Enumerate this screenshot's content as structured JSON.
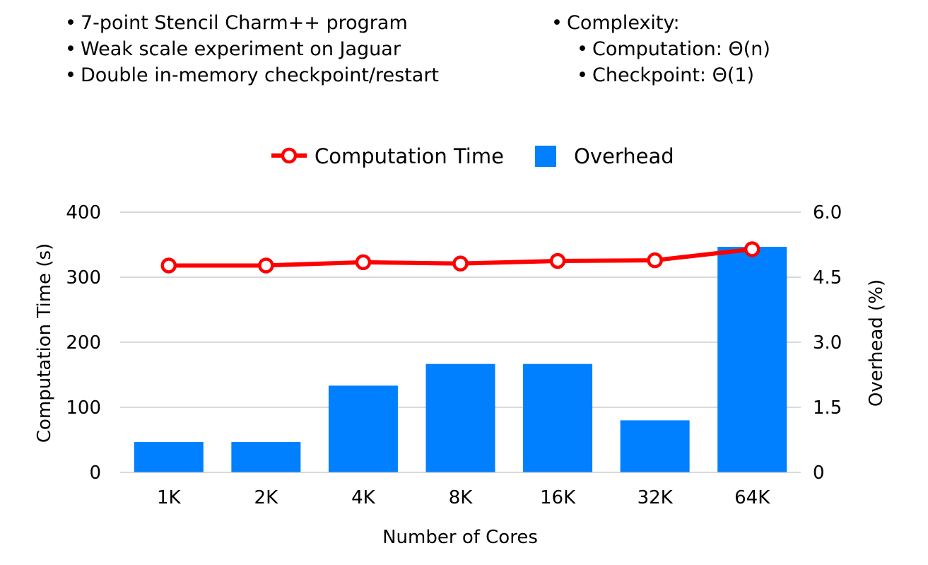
{
  "notes_left": [
    "7-point Stencil Charm++ program",
    "Weak scale experiment on Jaguar",
    "Double in-memory checkpoint/restart"
  ],
  "notes_right": {
    "heading": "Complexity:",
    "items": [
      "Computation: Θ(n)",
      "Checkpoint: Θ(1)"
    ]
  },
  "chart_data": {
    "type": "bar",
    "categories": [
      "1K",
      "2K",
      "4K",
      "8K",
      "16K",
      "32K",
      "64K"
    ],
    "series": [
      {
        "name": "Computation Time",
        "type": "line",
        "axis": "left",
        "color": "#ff0000",
        "values": [
          318,
          318,
          323,
          321,
          325,
          326,
          343
        ]
      },
      {
        "name": "Overhead",
        "type": "bar",
        "axis": "right",
        "color": "#0080ff",
        "values": [
          0.7,
          0.7,
          2.0,
          2.5,
          2.5,
          1.2,
          5.2
        ]
      }
    ],
    "xlabel": "Number of Cores",
    "ylabel": "Computation Time (s)",
    "y2label": "Overhead (%)",
    "ylim": [
      0,
      400
    ],
    "y2lim": [
      0,
      6.0
    ],
    "yticks": [
      "0",
      "100",
      "200",
      "300",
      "400"
    ],
    "y2ticks": [
      "0",
      "1.5",
      "3.0",
      "4.5",
      "6.0"
    ],
    "grid": true,
    "legend": "top-center"
  }
}
